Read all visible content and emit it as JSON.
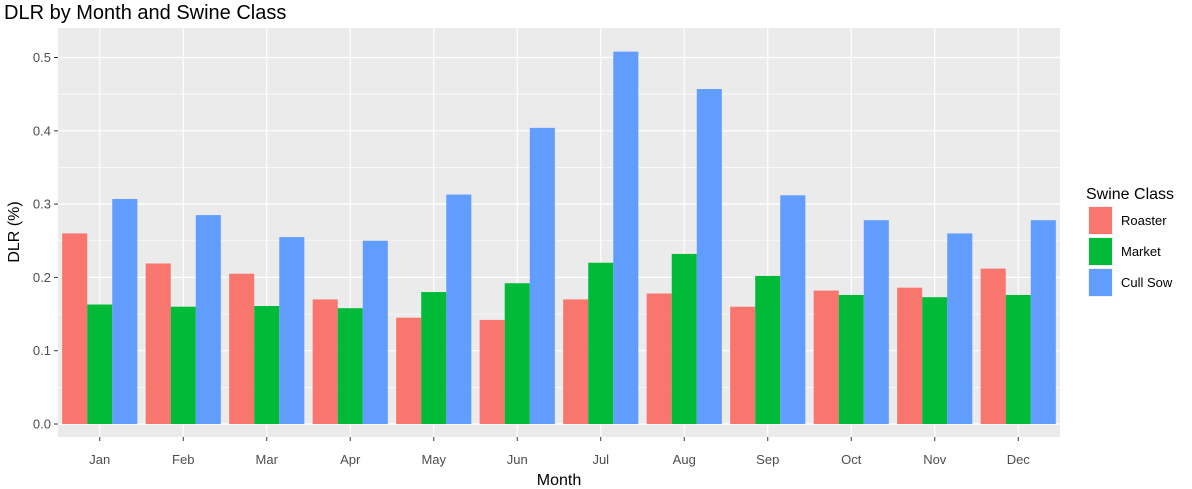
{
  "chart_data": {
    "type": "bar",
    "title": "DLR by Month and Swine Class",
    "xlabel": "Month",
    "ylabel": "DLR (%)",
    "ylim": [
      0,
      0.525
    ],
    "yticks": [
      "0.0",
      "0.1",
      "0.2",
      "0.3",
      "0.4",
      "0.5"
    ],
    "categories": [
      "Jan",
      "Feb",
      "Mar",
      "Apr",
      "May",
      "Jun",
      "Jul",
      "Aug",
      "Sep",
      "Oct",
      "Nov",
      "Dec"
    ],
    "legend_title": "Swine Class",
    "legend_position": "right",
    "grid": true,
    "series": [
      {
        "name": "Roaster",
        "color": "#F8766D",
        "values": [
          0.26,
          0.219,
          0.205,
          0.17,
          0.145,
          0.142,
          0.17,
          0.178,
          0.16,
          0.182,
          0.186,
          0.212
        ]
      },
      {
        "name": "Market",
        "color": "#00BA38",
        "values": [
          0.163,
          0.16,
          0.161,
          0.158,
          0.18,
          0.192,
          0.22,
          0.232,
          0.202,
          0.176,
          0.173,
          0.176
        ]
      },
      {
        "name": "Cull Sow",
        "color": "#619CFF",
        "values": [
          0.307,
          0.285,
          0.255,
          0.25,
          0.313,
          0.404,
          0.508,
          0.457,
          0.312,
          0.278,
          0.26,
          0.278
        ]
      }
    ]
  }
}
